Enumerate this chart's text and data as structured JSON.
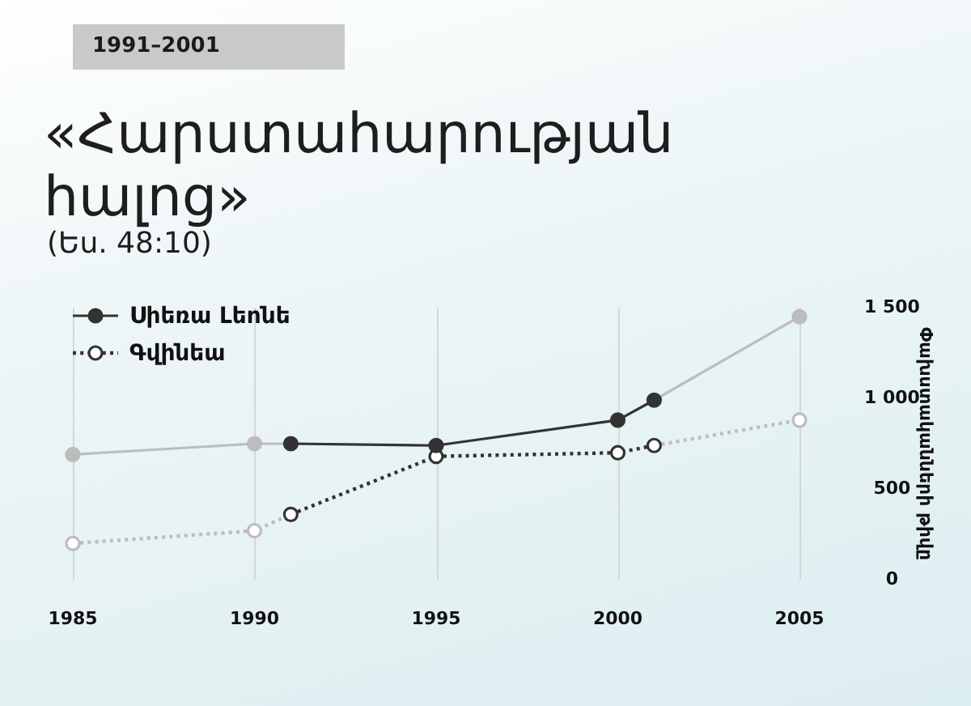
{
  "chart_data": {
    "type": "line",
    "title": "«Հարստահարության հալոց»",
    "subtitle": "(Ես. 48:10)",
    "annotations": [
      "1991–2001"
    ],
    "ylabel": "Փախստականների թիվը",
    "xlim": [
      1985,
      2005
    ],
    "xticks": [
      1985,
      1990,
      1995,
      2000,
      2005
    ],
    "ylim": [
      0,
      1500
    ],
    "yticks": [
      0,
      500,
      {
        "value": 1000,
        "label": "1 000"
      },
      {
        "value": 1500,
        "label": "1 500"
      }
    ],
    "series": [
      {
        "color": "#bdbdbd",
        "x": [
          1985,
          1990,
          1991,
          1995,
          2001,
          2005
        ],
        "values": [
          690,
          750,
          750,
          null,
          990,
          1450
        ],
        "line_style": "solid"
      },
      {
        "color": "#bdbdbd",
        "x": [
          1985,
          1990,
          1991,
          1995,
          2001,
          2005
        ],
        "values": [
          200,
          270,
          360,
          null,
          740,
          880
        ],
        "line_style": "dotted"
      },
      {
        "name": "Սիեռա Լեոնե",
        "color": "#333333",
        "x": [
          1991,
          1995,
          2000,
          2001
        ],
        "values": [
          750,
          740,
          880,
          990
        ],
        "line_style": "solid"
      },
      {
        "name": "Գվինեա",
        "color": "#333333",
        "x": [
          1991,
          1995,
          2000,
          2001
        ],
        "values": [
          360,
          680,
          700,
          740
        ],
        "line_style": "dotted"
      }
    ],
    "marker": "circle",
    "grid": "x",
    "legend": "top left"
  }
}
